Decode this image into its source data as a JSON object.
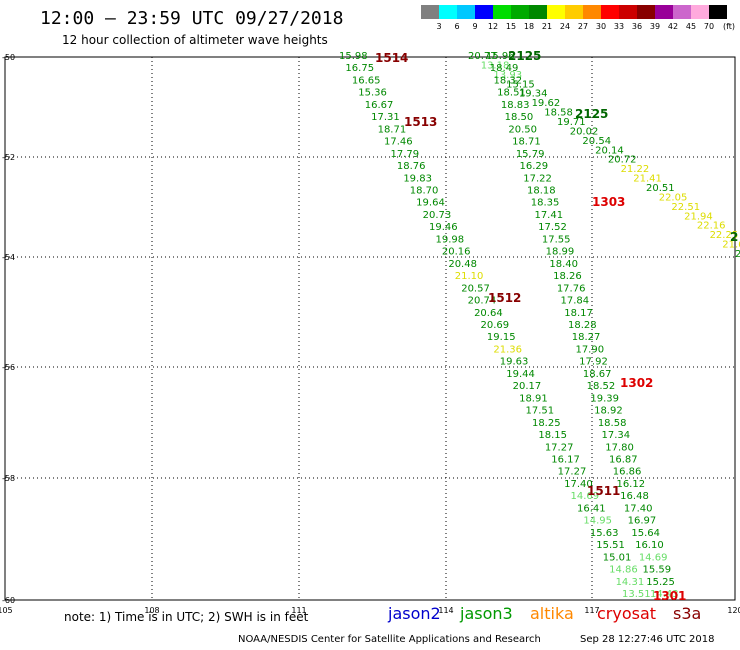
{
  "header": {
    "title": "12:00 – 23:59 UTC 09/27/2018",
    "subtitle": "12 hour collection of altimeter wave heights"
  },
  "colorbar": {
    "unit": "(ft)",
    "colors": [
      "#808080",
      "#00ffff",
      "#00c8ff",
      "#0000ff",
      "#00dd00",
      "#00aa00",
      "#008800",
      "#ffff00",
      "#ffcc00",
      "#ff8800",
      "#ff0000",
      "#cc0000",
      "#880000",
      "#990099",
      "#cc66cc",
      "#ffaadd",
      "#000000"
    ],
    "labels": [
      "3",
      "6",
      "9",
      "12",
      "15",
      "18",
      "21",
      "24",
      "27",
      "30",
      "33",
      "36",
      "39",
      "42",
      "45",
      "70"
    ]
  },
  "axes": {
    "x_ticks": [
      "105",
      "108",
      "111",
      "114",
      "117",
      "120"
    ],
    "y_ticks": [
      "-50",
      "-52",
      "-54",
      "-56",
      "-58",
      "-60"
    ]
  },
  "tracks": [
    {
      "id": "1514",
      "label_color": "#880000",
      "track_color": "#009900",
      "values": [
        "15.98",
        "16.75",
        "16.65",
        "15.36",
        "16.67",
        "17.31",
        "18.71",
        "17.46",
        "17.79",
        "18.76",
        "19.83",
        "18.70",
        "19.64",
        "20.73",
        "19.46",
        "19.98",
        "20.16",
        "20.48",
        "21.10",
        "20.57",
        "20.74",
        "20.64",
        "20.69",
        "19.15",
        "21.36",
        "19.63",
        "19.44",
        "20.17",
        "18.91",
        "17.51",
        "18.25",
        "18.15",
        "17.27",
        "16.17",
        "17.27",
        "17.40",
        "14.69",
        "16.41",
        "14.95",
        "15.63",
        "15.51",
        "15.01",
        "14.86",
        "14.31",
        "13.51"
      ]
    },
    {
      "id": "2125",
      "label_color": "#006600",
      "track_color": "#009900",
      "values": [
        "20.77",
        "13.18",
        "13.93",
        "15.15",
        "19.34",
        "19.62",
        "18.58",
        "19.71",
        "20.02",
        "20.54",
        "20.14",
        "20.72",
        "21.22",
        "21.41",
        "20.51",
        "22.05",
        "22.51",
        "21.94",
        "22.16",
        "22.25",
        "21.60",
        "20.4"
      ]
    },
    {
      "id": "1303",
      "label_color": "#dd0000",
      "track_color": "#009900",
      "values": [
        "15.96",
        "18.49",
        "18.32",
        "18.51",
        "18.83",
        "18.50",
        "20.50",
        "18.71",
        "15.79",
        "16.29",
        "17.22",
        "18.18",
        "18.35",
        "17.41",
        "17.52",
        "17.55",
        "18.99",
        "18.40",
        "18.26",
        "17.76",
        "17.84",
        "18.17",
        "18.28",
        "18.27",
        "17.90",
        "17.92",
        "18.67",
        "18.52",
        "19.39",
        "18.92",
        "18.58",
        "17.34",
        "17.80",
        "16.87",
        "16.86",
        "16.12",
        "16.48",
        "17.40",
        "16.97",
        "15.64",
        "16.10",
        "14.69",
        "15.59",
        "15.25",
        "14.43"
      ]
    }
  ],
  "label_tags": {
    "t1514": "1514",
    "t1513": "1513",
    "t2125a": "2125",
    "t2125b": "2125",
    "t1303": "1303",
    "t1512": "1512",
    "t1302": "1302",
    "t1511": "1511",
    "t1301": "1301",
    "tedge": "2"
  },
  "notes": {
    "text": "note:  1) Time is in UTC;  2) SWH is in feet",
    "satellites": [
      {
        "name": "jason2",
        "color": "#0000cc"
      },
      {
        "name": "jason3",
        "color": "#009900"
      },
      {
        "name": "altika",
        "color": "#ff8800"
      },
      {
        "name": "cryosat",
        "color": "#dd0000"
      },
      {
        "name": "s3a",
        "color": "#880000"
      }
    ]
  },
  "footer": {
    "credit": "NOAA/NESDIS Center for Satellite Applications and Research",
    "stamp": "Sep 28 12:27:46 UTC 2018"
  }
}
